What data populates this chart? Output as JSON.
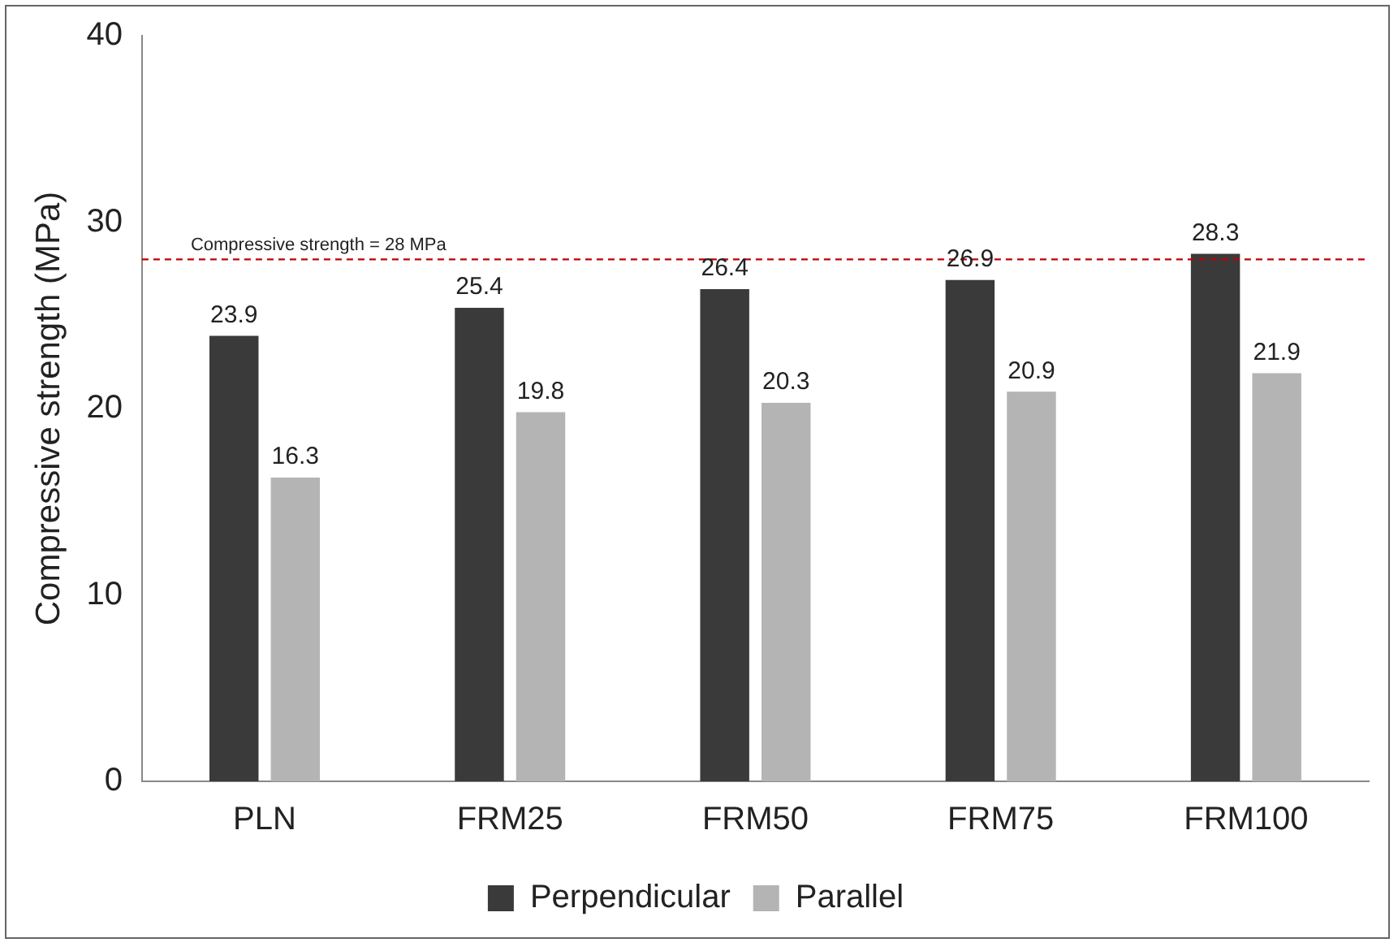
{
  "chart_data": {
    "type": "bar",
    "ylabel": "Compressive strength (MPa)",
    "categories": [
      "PLN",
      "FRM25",
      "FRM50",
      "FRM75",
      "FRM100"
    ],
    "series": [
      {
        "name": "Perpendicular",
        "color": "#3a3a3a",
        "values": [
          23.9,
          25.4,
          26.4,
          26.9,
          28.3
        ]
      },
      {
        "name": "Parallel",
        "color": "#b4b4b4",
        "values": [
          16.3,
          19.8,
          20.3,
          20.9,
          21.9
        ]
      }
    ],
    "ylim": [
      0,
      40
    ],
    "yticks": [
      0,
      10,
      20,
      30,
      40
    ],
    "ref_lines": [
      {
        "axis": "y",
        "value": 28,
        "label": "Compressive strength = 28 MPa",
        "color": "#c00000",
        "line_style": "dashed"
      }
    ],
    "data_labels": true,
    "legend": "bottom"
  }
}
